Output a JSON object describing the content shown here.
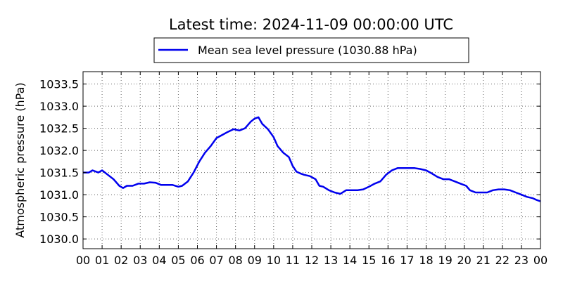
{
  "chart_data": {
    "type": "line",
    "title": "Latest time: 2024-11-09 00:00:00 UTC",
    "xlabel": "",
    "ylabel": "Atmospheric pressure (hPa)",
    "xlim": [
      0,
      24
    ],
    "ylim": [
      1029.78,
      1033.78
    ],
    "x_ticks": [
      0,
      1,
      2,
      3,
      4,
      5,
      6,
      7,
      8,
      9,
      10,
      11,
      12,
      13,
      14,
      15,
      16,
      17,
      18,
      19,
      20,
      21,
      22,
      23,
      24
    ],
    "x_tick_labels": [
      "00",
      "01",
      "02",
      "03",
      "04",
      "05",
      "06",
      "07",
      "08",
      "09",
      "10",
      "11",
      "12",
      "13",
      "14",
      "15",
      "16",
      "17",
      "18",
      "19",
      "20",
      "21",
      "22",
      "23",
      "00"
    ],
    "y_ticks": [
      1030.0,
      1030.5,
      1031.0,
      1031.5,
      1032.0,
      1032.5,
      1033.0,
      1033.5
    ],
    "y_tick_labels": [
      "1030.0",
      "1030.5",
      "1031.0",
      "1031.5",
      "1032.0",
      "1032.5",
      "1033.0",
      "1033.5"
    ],
    "grid": true,
    "legend_position": "top-center",
    "series": [
      {
        "name": "Mean sea level pressure (1030.88 hPa)",
        "color": "#0000ee",
        "x": [
          0,
          0.3,
          0.5,
          0.8,
          1.0,
          1.3,
          1.6,
          1.9,
          2.1,
          2.3,
          2.6,
          2.9,
          3.2,
          3.5,
          3.8,
          4.1,
          4.4,
          4.7,
          5.0,
          5.2,
          5.5,
          5.8,
          6.1,
          6.4,
          6.7,
          7.0,
          7.3,
          7.6,
          7.9,
          8.2,
          8.5,
          8.8,
          9.0,
          9.2,
          9.4,
          9.7,
          10.0,
          10.2,
          10.5,
          10.8,
          11.0,
          11.2,
          11.4,
          11.6,
          11.9,
          12.2,
          12.4,
          12.6,
          12.9,
          13.2,
          13.5,
          13.8,
          14.1,
          14.4,
          14.7,
          15.0,
          15.3,
          15.6,
          15.9,
          16.2,
          16.5,
          16.8,
          17.1,
          17.4,
          17.7,
          18.0,
          18.3,
          18.6,
          18.9,
          19.2,
          19.5,
          19.8,
          20.1,
          20.3,
          20.6,
          20.9,
          21.2,
          21.5,
          21.8,
          22.1,
          22.4,
          22.7,
          23.0,
          23.3,
          23.6,
          23.8,
          24.0
        ],
        "y": [
          1031.5,
          1031.5,
          1031.55,
          1031.5,
          1031.55,
          1031.45,
          1031.35,
          1031.2,
          1031.15,
          1031.2,
          1031.2,
          1031.25,
          1031.25,
          1031.28,
          1031.27,
          1031.22,
          1031.22,
          1031.22,
          1031.18,
          1031.2,
          1031.3,
          1031.5,
          1031.75,
          1031.95,
          1032.1,
          1032.28,
          1032.35,
          1032.42,
          1032.48,
          1032.45,
          1032.5,
          1032.65,
          1032.72,
          1032.75,
          1032.6,
          1032.48,
          1032.3,
          1032.1,
          1031.95,
          1031.85,
          1031.65,
          1031.52,
          1031.48,
          1031.45,
          1031.42,
          1031.35,
          1031.2,
          1031.18,
          1031.1,
          1031.05,
          1031.02,
          1031.1,
          1031.1,
          1031.1,
          1031.12,
          1031.18,
          1031.25,
          1031.3,
          1031.45,
          1031.55,
          1031.6,
          1031.6,
          1031.6,
          1031.6,
          1031.58,
          1031.55,
          1031.48,
          1031.4,
          1031.35,
          1031.35,
          1031.3,
          1031.25,
          1031.2,
          1031.1,
          1031.05,
          1031.05,
          1031.05,
          1031.1,
          1031.12,
          1031.12,
          1031.1,
          1031.05,
          1031.0,
          1030.95,
          1030.92,
          1030.88,
          1030.85
        ]
      }
    ]
  }
}
